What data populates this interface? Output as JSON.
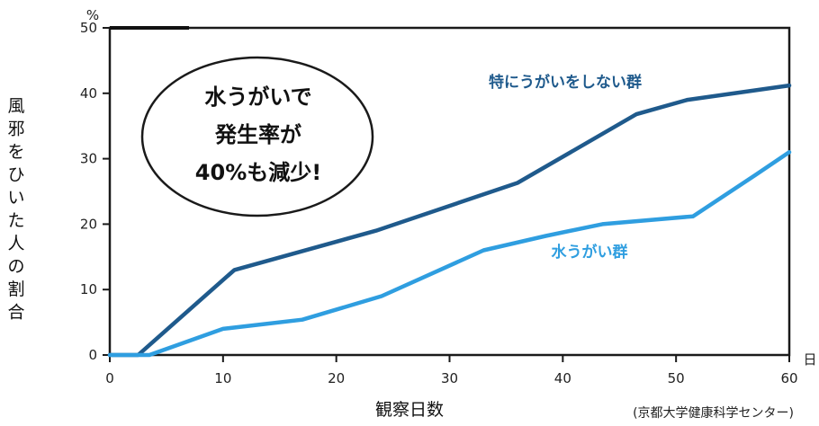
{
  "chart_data": {
    "type": "line",
    "y_unit": "%",
    "x_unit": "日",
    "xlabel": "観察日数",
    "ylabel": "風邪をひいた人の割合",
    "xlim": [
      0,
      60
    ],
    "ylim": [
      0,
      50
    ],
    "x_ticks": [
      0,
      10,
      20,
      30,
      40,
      50,
      60
    ],
    "y_ticks": [
      0,
      10,
      20,
      30,
      40,
      50
    ],
    "grid": false,
    "series": [
      {
        "name": "特にうがいをしない群",
        "color": "#1f5a8c",
        "points": [
          [
            0,
            0
          ],
          [
            2.5,
            0
          ],
          [
            11,
            13
          ],
          [
            23.5,
            19
          ],
          [
            36,
            26.3
          ],
          [
            46.5,
            36.8
          ],
          [
            51,
            39
          ],
          [
            60,
            41.2
          ]
        ]
      },
      {
        "name": "水うがい群",
        "color": "#2f9ee0",
        "points": [
          [
            0,
            0
          ],
          [
            3.5,
            0
          ],
          [
            10,
            4
          ],
          [
            17,
            5.4
          ],
          [
            24,
            9
          ],
          [
            33,
            16
          ],
          [
            38.5,
            18.2
          ],
          [
            43.5,
            20
          ],
          [
            51.5,
            21.2
          ],
          [
            57,
            27.5
          ],
          [
            60,
            31
          ]
        ]
      }
    ],
    "annotation": [
      "水うがいで",
      "発生率が",
      "40%も減少!"
    ],
    "source": "(京都大学健康科学センター)"
  }
}
